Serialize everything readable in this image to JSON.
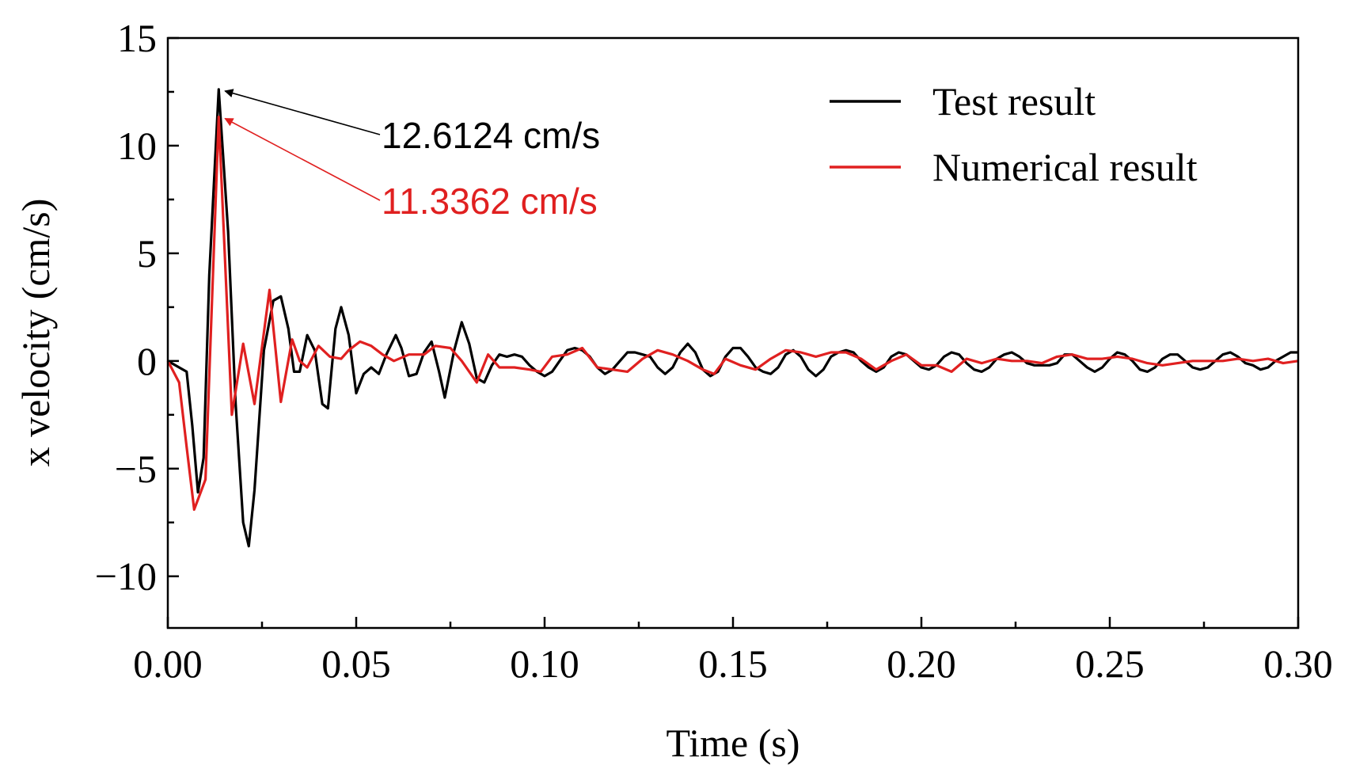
{
  "chart_data": {
    "type": "line",
    "title": "",
    "xlabel": "Time (s)",
    "ylabel": "x velocity (cm/s)",
    "xlim": [
      0,
      0.3
    ],
    "ylim": [
      -12.4,
      15
    ],
    "x_ticks": [
      0.0,
      0.05,
      0.1,
      0.15,
      0.2,
      0.25,
      0.3
    ],
    "x_tick_labels": [
      "0.00",
      "0.05",
      "0.10",
      "0.15",
      "0.20",
      "0.25",
      "0.30"
    ],
    "y_ticks": [
      -10,
      -5,
      0,
      5,
      10,
      15
    ],
    "y_tick_labels": [
      "−10",
      "−5",
      "0",
      "5",
      "10",
      "15"
    ],
    "legend_position": "top-right",
    "series": [
      {
        "name": "Test result",
        "color": "#000000",
        "points": [
          [
            0.0,
            0.0
          ],
          [
            0.003,
            -0.3
          ],
          [
            0.005,
            -0.5
          ],
          [
            0.0065,
            -3.0
          ],
          [
            0.008,
            -6.1
          ],
          [
            0.0095,
            -4.5
          ],
          [
            0.011,
            4.0
          ],
          [
            0.0135,
            12.6124
          ],
          [
            0.016,
            6.0
          ],
          [
            0.018,
            -2.0
          ],
          [
            0.02,
            -7.5
          ],
          [
            0.0215,
            -8.6
          ],
          [
            0.023,
            -6.0
          ],
          [
            0.0255,
            0.5
          ],
          [
            0.028,
            2.8
          ],
          [
            0.03,
            3.0
          ],
          [
            0.032,
            1.5
          ],
          [
            0.0335,
            -0.5
          ],
          [
            0.035,
            -0.5
          ],
          [
            0.037,
            1.2
          ],
          [
            0.039,
            0.5
          ],
          [
            0.041,
            -2.0
          ],
          [
            0.0425,
            -2.2
          ],
          [
            0.0445,
            1.5
          ],
          [
            0.046,
            2.5
          ],
          [
            0.048,
            1.2
          ],
          [
            0.05,
            -1.5
          ],
          [
            0.052,
            -0.6
          ],
          [
            0.054,
            -0.3
          ],
          [
            0.056,
            -0.6
          ],
          [
            0.058,
            0.3
          ],
          [
            0.0605,
            1.2
          ],
          [
            0.062,
            0.6
          ],
          [
            0.064,
            -0.7
          ],
          [
            0.066,
            -0.6
          ],
          [
            0.068,
            0.4
          ],
          [
            0.07,
            0.9
          ],
          [
            0.072,
            -0.5
          ],
          [
            0.0735,
            -1.7
          ],
          [
            0.076,
            0.5
          ],
          [
            0.078,
            1.8
          ],
          [
            0.08,
            0.8
          ],
          [
            0.082,
            -0.8
          ],
          [
            0.084,
            -1.0
          ],
          [
            0.086,
            -0.2
          ],
          [
            0.088,
            0.3
          ],
          [
            0.09,
            0.2
          ],
          [
            0.092,
            0.3
          ],
          [
            0.094,
            0.2
          ],
          [
            0.096,
            -0.2
          ],
          [
            0.098,
            -0.5
          ],
          [
            0.1,
            -0.7
          ],
          [
            0.102,
            -0.5
          ],
          [
            0.104,
            0.0
          ],
          [
            0.106,
            0.5
          ],
          [
            0.108,
            0.6
          ],
          [
            0.11,
            0.5
          ],
          [
            0.112,
            0.2
          ],
          [
            0.114,
            -0.3
          ],
          [
            0.116,
            -0.6
          ],
          [
            0.118,
            -0.4
          ],
          [
            0.12,
            0.0
          ],
          [
            0.122,
            0.4
          ],
          [
            0.124,
            0.4
          ],
          [
            0.126,
            0.3
          ],
          [
            0.128,
            0.2
          ],
          [
            0.13,
            -0.3
          ],
          [
            0.132,
            -0.6
          ],
          [
            0.134,
            -0.3
          ],
          [
            0.136,
            0.4
          ],
          [
            0.138,
            0.8
          ],
          [
            0.14,
            0.4
          ],
          [
            0.142,
            -0.4
          ],
          [
            0.144,
            -0.7
          ],
          [
            0.146,
            -0.5
          ],
          [
            0.148,
            0.2
          ],
          [
            0.15,
            0.6
          ],
          [
            0.152,
            0.6
          ],
          [
            0.154,
            0.2
          ],
          [
            0.156,
            -0.3
          ],
          [
            0.158,
            -0.5
          ],
          [
            0.16,
            -0.6
          ],
          [
            0.162,
            -0.3
          ],
          [
            0.164,
            0.3
          ],
          [
            0.166,
            0.5
          ],
          [
            0.168,
            0.2
          ],
          [
            0.17,
            -0.4
          ],
          [
            0.172,
            -0.7
          ],
          [
            0.174,
            -0.4
          ],
          [
            0.176,
            0.2
          ],
          [
            0.178,
            0.4
          ],
          [
            0.18,
            0.5
          ],
          [
            0.182,
            0.4
          ],
          [
            0.184,
            0.0
          ],
          [
            0.186,
            -0.3
          ],
          [
            0.188,
            -0.5
          ],
          [
            0.19,
            -0.3
          ],
          [
            0.192,
            0.2
          ],
          [
            0.194,
            0.4
          ],
          [
            0.196,
            0.3
          ],
          [
            0.198,
            0.0
          ],
          [
            0.2,
            -0.3
          ],
          [
            0.202,
            -0.4
          ],
          [
            0.204,
            -0.2
          ],
          [
            0.206,
            0.2
          ],
          [
            0.208,
            0.4
          ],
          [
            0.21,
            0.3
          ],
          [
            0.212,
            -0.1
          ],
          [
            0.214,
            -0.4
          ],
          [
            0.216,
            -0.5
          ],
          [
            0.218,
            -0.3
          ],
          [
            0.22,
            0.1
          ],
          [
            0.222,
            0.3
          ],
          [
            0.224,
            0.4
          ],
          [
            0.226,
            0.2
          ],
          [
            0.228,
            -0.1
          ],
          [
            0.23,
            -0.2
          ],
          [
            0.232,
            -0.2
          ],
          [
            0.234,
            -0.2
          ],
          [
            0.236,
            -0.1
          ],
          [
            0.238,
            0.3
          ],
          [
            0.24,
            0.3
          ],
          [
            0.242,
            0.0
          ],
          [
            0.244,
            -0.3
          ],
          [
            0.246,
            -0.5
          ],
          [
            0.248,
            -0.3
          ],
          [
            0.25,
            0.1
          ],
          [
            0.252,
            0.4
          ],
          [
            0.254,
            0.3
          ],
          [
            0.256,
            0.0
          ],
          [
            0.258,
            -0.4
          ],
          [
            0.26,
            -0.5
          ],
          [
            0.262,
            -0.3
          ],
          [
            0.264,
            0.1
          ],
          [
            0.266,
            0.3
          ],
          [
            0.268,
            0.3
          ],
          [
            0.27,
            0.0
          ],
          [
            0.272,
            -0.3
          ],
          [
            0.274,
            -0.4
          ],
          [
            0.276,
            -0.3
          ],
          [
            0.278,
            0.0
          ],
          [
            0.28,
            0.3
          ],
          [
            0.282,
            0.4
          ],
          [
            0.284,
            0.2
          ],
          [
            0.286,
            -0.1
          ],
          [
            0.288,
            -0.2
          ],
          [
            0.29,
            -0.4
          ],
          [
            0.292,
            -0.3
          ],
          [
            0.294,
            0.0
          ],
          [
            0.296,
            0.2
          ],
          [
            0.298,
            0.4
          ],
          [
            0.3,
            0.4
          ]
        ]
      },
      {
        "name": "Numerical result",
        "color": "#e02020",
        "points": [
          [
            0.0,
            0.0
          ],
          [
            0.003,
            -1.0
          ],
          [
            0.005,
            -4.0
          ],
          [
            0.007,
            -6.9
          ],
          [
            0.01,
            -5.5
          ],
          [
            0.0135,
            11.3362
          ],
          [
            0.017,
            -2.5
          ],
          [
            0.02,
            0.8
          ],
          [
            0.023,
            -2.0
          ],
          [
            0.027,
            3.3
          ],
          [
            0.03,
            -1.9
          ],
          [
            0.033,
            1.0
          ],
          [
            0.035,
            0.0
          ],
          [
            0.037,
            -0.3
          ],
          [
            0.04,
            0.7
          ],
          [
            0.043,
            0.2
          ],
          [
            0.046,
            0.1
          ],
          [
            0.048,
            0.5
          ],
          [
            0.051,
            0.9
          ],
          [
            0.054,
            0.7
          ],
          [
            0.057,
            0.3
          ],
          [
            0.06,
            0.0
          ],
          [
            0.064,
            0.3
          ],
          [
            0.068,
            0.3
          ],
          [
            0.071,
            0.7
          ],
          [
            0.075,
            0.6
          ],
          [
            0.078,
            0.0
          ],
          [
            0.082,
            -1.0
          ],
          [
            0.085,
            0.3
          ],
          [
            0.088,
            -0.3
          ],
          [
            0.092,
            -0.3
          ],
          [
            0.096,
            -0.4
          ],
          [
            0.099,
            -0.5
          ],
          [
            0.102,
            0.2
          ],
          [
            0.106,
            0.3
          ],
          [
            0.11,
            0.6
          ],
          [
            0.114,
            -0.3
          ],
          [
            0.118,
            -0.4
          ],
          [
            0.122,
            -0.5
          ],
          [
            0.126,
            0.1
          ],
          [
            0.13,
            0.5
          ],
          [
            0.134,
            0.3
          ],
          [
            0.138,
            0.0
          ],
          [
            0.142,
            -0.4
          ],
          [
            0.145,
            -0.6
          ],
          [
            0.148,
            0.1
          ],
          [
            0.152,
            -0.2
          ],
          [
            0.156,
            -0.4
          ],
          [
            0.16,
            0.1
          ],
          [
            0.164,
            0.5
          ],
          [
            0.168,
            0.4
          ],
          [
            0.172,
            0.2
          ],
          [
            0.176,
            0.4
          ],
          [
            0.18,
            0.4
          ],
          [
            0.184,
            0.1
          ],
          [
            0.188,
            -0.4
          ],
          [
            0.192,
            0.0
          ],
          [
            0.196,
            0.3
          ],
          [
            0.2,
            -0.2
          ],
          [
            0.204,
            -0.2
          ],
          [
            0.208,
            -0.5
          ],
          [
            0.212,
            0.1
          ],
          [
            0.216,
            -0.1
          ],
          [
            0.22,
            0.1
          ],
          [
            0.224,
            0.0
          ],
          [
            0.228,
            0.0
          ],
          [
            0.232,
            -0.1
          ],
          [
            0.236,
            0.2
          ],
          [
            0.24,
            0.3
          ],
          [
            0.244,
            0.1
          ],
          [
            0.248,
            0.1
          ],
          [
            0.252,
            0.2
          ],
          [
            0.256,
            0.1
          ],
          [
            0.26,
            -0.1
          ],
          [
            0.264,
            -0.2
          ],
          [
            0.268,
            -0.1
          ],
          [
            0.272,
            0.0
          ],
          [
            0.276,
            0.0
          ],
          [
            0.28,
            0.0
          ],
          [
            0.284,
            0.1
          ],
          [
            0.288,
            0.0
          ],
          [
            0.292,
            0.1
          ],
          [
            0.296,
            -0.1
          ],
          [
            0.3,
            0.0
          ]
        ]
      }
    ],
    "annotations": [
      {
        "text": "12.6124 cm/s",
        "color": "#000000",
        "x": 0.0135,
        "y": 12.6124
      },
      {
        "text": "11.3362 cm/s",
        "color": "#e02020",
        "x": 0.0135,
        "y": 11.3362
      }
    ]
  }
}
